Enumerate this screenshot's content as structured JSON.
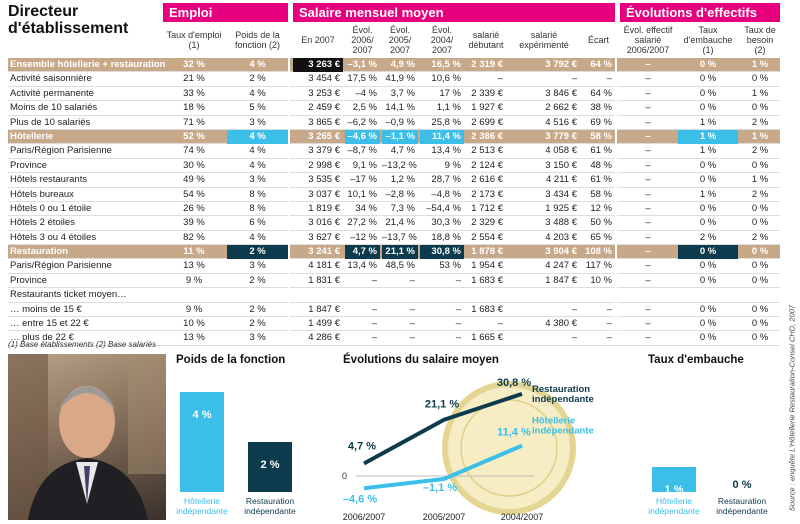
{
  "title": "Directeur d'établissement",
  "groups": {
    "emploi": "Emploi",
    "salaire": "Salaire mensuel moyen",
    "evolutions": "Évolutions d'effectifs"
  },
  "subheaders": {
    "taux_emploi": "Taux d'emploi (1)",
    "poids": "Poids de la fonction (2)",
    "en2007": "En 2007",
    "evol1": "Évol. 2006/ 2007",
    "evol2": "Évol. 2005/ 2007",
    "evol3": "Évol. 2004/ 2007",
    "debutant": "salarié débutant",
    "experimente": "salarié expérimenté",
    "ecart": "Écart",
    "evol_eff": "Évol. effectif salarié 2006/2007",
    "embauche": "Taux d'embauche (1)",
    "besoin": "Taux de besoin (2)"
  },
  "rows": [
    {
      "label": "Ensemble hôtellerie + restauration",
      "hl": true,
      "c": [
        "32 %",
        "4 %",
        "3 263 €",
        "–3,1 %",
        "4,9 %",
        "16,5 %",
        "2 319 €",
        "3 792 €",
        "64 %",
        "–",
        "0 %",
        "1 %"
      ]
    },
    {
      "label": "Activité saisonnière",
      "c": [
        "21 %",
        "2 %",
        "3 454 €",
        "17,5 %",
        "41,9 %",
        "10,6 %",
        "–",
        "–",
        "–",
        "–",
        "0 %",
        "0 %"
      ]
    },
    {
      "label": "Activité permanente",
      "c": [
        "33 %",
        "4 %",
        "3 253 €",
        "–4 %",
        "3,7 %",
        "17 %",
        "2 339 €",
        "3 846 €",
        "64 %",
        "–",
        "0 %",
        "1 %"
      ]
    },
    {
      "label": "Moins de 10 salariés",
      "c": [
        "18 %",
        "5 %",
        "2 459 €",
        "2,5 %",
        "14,1 %",
        "1,1 %",
        "1 927 €",
        "2 662 €",
        "38 %",
        "–",
        "0 %",
        "0 %"
      ]
    },
    {
      "label": "Plus de 10 salariés",
      "c": [
        "71 %",
        "3 %",
        "3 865 €",
        "–6,2 %",
        "–0,9 %",
        "25,8 %",
        "2 699 €",
        "4 516 €",
        "69 %",
        "–",
        "1 %",
        "2 %"
      ]
    },
    {
      "label": "Hôtellerie",
      "hl": true,
      "c": [
        "52 %",
        "4 %",
        "3 265 €",
        "–4,6 %",
        "–1,1 %",
        "11,4 %",
        "2 386 €",
        "3 779 €",
        "58 %",
        "–",
        "1 %",
        "1 %"
      ]
    },
    {
      "label": "Paris/Région Parisienne",
      "c": [
        "74 %",
        "4 %",
        "3 379 €",
        "–8,7 %",
        "4,7 %",
        "13,4 %",
        "2 513 €",
        "4 058 €",
        "61 %",
        "–",
        "1 %",
        "2 %"
      ]
    },
    {
      "label": "Province",
      "c": [
        "30 %",
        "4 %",
        "2 998 €",
        "9,1 %",
        "–13,2 %",
        "9 %",
        "2 124 €",
        "3 150 €",
        "48 %",
        "–",
        "0 %",
        "0 %"
      ]
    },
    {
      "label": "Hôtels restaurants",
      "c": [
        "49 %",
        "3 %",
        "3 535 €",
        "–17 %",
        "1,2 %",
        "28,7 %",
        "2 616 €",
        "4 211 €",
        "61 %",
        "–",
        "0 %",
        "1 %"
      ]
    },
    {
      "label": "Hôtels bureaux",
      "c": [
        "54 %",
        "8 %",
        "3 037 €",
        "10,1 %",
        "–2,8 %",
        "–4,8 %",
        "2 173 €",
        "3 434 €",
        "58 %",
        "–",
        "1 %",
        "2 %"
      ]
    },
    {
      "label": "Hôtels 0 ou 1 étoile",
      "c": [
        "26 %",
        "8 %",
        "1 819 €",
        "34 %",
        "7,3 %",
        "–54,4 %",
        "1 712 €",
        "1 925 €",
        "12 %",
        "–",
        "0 %",
        "0 %"
      ]
    },
    {
      "label": "Hôtels 2 étoiles",
      "c": [
        "39 %",
        "6 %",
        "3 016 €",
        "27,2 %",
        "21,4 %",
        "30,3 %",
        "2 329 €",
        "3 488 €",
        "50 %",
        "–",
        "0 %",
        "0 %"
      ]
    },
    {
      "label": "Hôtels 3 ou 4 étoiles",
      "c": [
        "82 %",
        "4 %",
        "3 627 €",
        "–12 %",
        "–13,7 %",
        "18,8 %",
        "2 554 €",
        "4 203 €",
        "65 %",
        "–",
        "2 %",
        "2 %"
      ]
    },
    {
      "label": "Restauration",
      "hl": true,
      "c": [
        "11 %",
        "2 %",
        "3 241 €",
        "4,7 %",
        "21,1 %",
        "30,8 %",
        "1 878 €",
        "3 904 €",
        "108 %",
        "–",
        "0 %",
        "0 %"
      ]
    },
    {
      "label": "Paris/Région Parisienne",
      "c": [
        "13 %",
        "3 %",
        "4 181 €",
        "13,4 %",
        "48,5 %",
        "53 %",
        "1 954 €",
        "4 247 €",
        "117 %",
        "–",
        "0 %",
        "0 %"
      ]
    },
    {
      "label": "Province",
      "c": [
        "9 %",
        "2 %",
        "1 831 €",
        "–",
        "–",
        "–",
        "1 683 €",
        "1 847 €",
        "10 %",
        "–",
        "0 %",
        "0 %"
      ]
    },
    {
      "label": "Restaurants ticket moyen…",
      "c": [
        "",
        "",
        "",
        "",
        "",
        "",
        "",
        "",
        "",
        "",
        "",
        ""
      ]
    },
    {
      "label": "… moins de 15 €",
      "c": [
        "9 %",
        "2 %",
        "1 847 €",
        "–",
        "–",
        "–",
        "1 683 €",
        "–",
        "–",
        "–",
        "0 %",
        "0 %"
      ]
    },
    {
      "label": "… entre 15 et 22 €",
      "c": [
        "10 %",
        "2 %",
        "1 499 €",
        "–",
        "–",
        "–",
        "–",
        "4 380 €",
        "–",
        "–",
        "0 %",
        "0 %"
      ]
    },
    {
      "label": "… plus de 22 €",
      "c": [
        "13 %",
        "3 %",
        "4 286 €",
        "–",
        "–",
        "–",
        "1 665 €",
        "–",
        "–",
        "–",
        "0 %",
        "0 %"
      ]
    }
  ],
  "notes": "(1) Base établissements     (2) Base salariés",
  "source": "Source : enquête L'Hôtellerie Restauration-Consei CHD, 2007",
  "colors": {
    "magenta": "#e6007e",
    "tan": "#c7a98a",
    "dark": "#0d3b4d",
    "cyan": "#3bbfe8"
  },
  "chart_data": [
    {
      "type": "bar",
      "title": "Poids de la fonction",
      "categories": [
        "Hôtellerie indépendante",
        "Restauration indépendante"
      ],
      "values": [
        4,
        2
      ],
      "value_labels": [
        "4 %",
        "2 %"
      ],
      "ylim": [
        0,
        4
      ]
    },
    {
      "type": "line",
      "title": "Évolutions du salaire moyen",
      "x": [
        "2006/2007",
        "2005/2007",
        "2004/2007"
      ],
      "zero_label": "0",
      "series": [
        {
          "name": "Restauration indépendante",
          "values": [
            4.7,
            21.1,
            30.8
          ],
          "labels": [
            "4,7 %",
            "21,1 %",
            "30,8 %"
          ],
          "color": "#0d3b4d"
        },
        {
          "name": "Hôtellerie indépendante",
          "values": [
            -4.6,
            -1.1,
            11.4
          ],
          "labels": [
            "–4,6 %",
            "–1,1 %",
            "11,4 %"
          ],
          "color": "#3bbfe8"
        }
      ]
    },
    {
      "type": "bar",
      "title": "Taux d'embauche",
      "categories": [
        "Hôtellerie indépendante",
        "Restauration indépendante"
      ],
      "values": [
        1,
        0
      ],
      "value_labels": [
        "1 %",
        "0 %"
      ],
      "ylim": [
        0,
        4
      ]
    }
  ]
}
